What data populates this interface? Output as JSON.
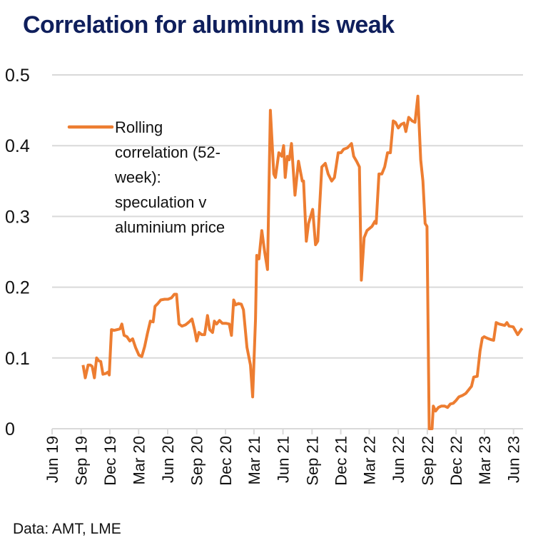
{
  "title": "Correlation for aluminum is weak",
  "source": "Data: AMT, LME",
  "colors": {
    "title": "#0f1f5c",
    "line": "#ed7d31",
    "grid": "#d9d9d9"
  },
  "chart_data": {
    "type": "line",
    "title": "Correlation for aluminum is weak",
    "xlabel": "",
    "ylabel": "",
    "ylim": [
      0,
      0.5
    ],
    "xlim": [
      "2019-06-01",
      "2023-07-01"
    ],
    "grid": true,
    "legend_placement": "top-left",
    "yticks": [
      "0",
      "0.1",
      "0.2",
      "0.3",
      "0.4",
      "0.5"
    ],
    "xticks": [
      {
        "date": "2019-06-01",
        "label": "Jun 19"
      },
      {
        "date": "2019-09-01",
        "label": "Sep 19"
      },
      {
        "date": "2019-12-01",
        "label": "Dec 19"
      },
      {
        "date": "2020-03-01",
        "label": "Mar 20"
      },
      {
        "date": "2020-06-01",
        "label": "Jun 20"
      },
      {
        "date": "2020-09-01",
        "label": "Sep 20"
      },
      {
        "date": "2020-12-01",
        "label": "Dec 20"
      },
      {
        "date": "2021-03-01",
        "label": "Mar 21"
      },
      {
        "date": "2021-06-01",
        "label": "Jun 21"
      },
      {
        "date": "2021-09-01",
        "label": "Sep 21"
      },
      {
        "date": "2021-12-01",
        "label": "Dec 21"
      },
      {
        "date": "2022-03-01",
        "label": "Mar 22"
      },
      {
        "date": "2022-06-01",
        "label": "Jun 22"
      },
      {
        "date": "2022-09-01",
        "label": "Sep 22"
      },
      {
        "date": "2022-12-01",
        "label": "Dec 22"
      },
      {
        "date": "2023-03-01",
        "label": "Mar 23"
      },
      {
        "date": "2023-06-01",
        "label": "Jun 23"
      }
    ],
    "series": [
      {
        "name": "Rolling correlation (52-week): speculation v aluminium price",
        "legend_lines": [
          "Rolling",
          "correlation (52-",
          "week):",
          "speculation v",
          "aluminium price"
        ],
        "points": [
          [
            "2019-09-07",
            0.09
          ],
          [
            "2019-09-14",
            0.072
          ],
          [
            "2019-09-23",
            0.09
          ],
          [
            "2019-09-30",
            0.09
          ],
          [
            "2019-10-06",
            0.088
          ],
          [
            "2019-10-13",
            0.072
          ],
          [
            "2019-10-20",
            0.1
          ],
          [
            "2019-10-27",
            0.096
          ],
          [
            "2019-11-02",
            0.095
          ],
          [
            "2019-11-09",
            0.077
          ],
          [
            "2019-11-18",
            0.078
          ],
          [
            "2019-11-25",
            0.08
          ],
          [
            "2019-11-29",
            0.076
          ],
          [
            "2019-12-06",
            0.14
          ],
          [
            "2019-12-15",
            0.139
          ],
          [
            "2019-12-24",
            0.14
          ],
          [
            "2020-01-02",
            0.141
          ],
          [
            "2020-01-08",
            0.148
          ],
          [
            "2020-01-15",
            0.132
          ],
          [
            "2020-01-24",
            0.13
          ],
          [
            "2020-02-02",
            0.124
          ],
          [
            "2020-02-11",
            0.127
          ],
          [
            "2020-02-20",
            0.115
          ],
          [
            "2020-03-02",
            0.104
          ],
          [
            "2020-03-11",
            0.102
          ],
          [
            "2020-03-20",
            0.116
          ],
          [
            "2020-03-29",
            0.135
          ],
          [
            "2020-04-07",
            0.152
          ],
          [
            "2020-04-16",
            0.151
          ],
          [
            "2020-04-22",
            0.173
          ],
          [
            "2020-05-01",
            0.177
          ],
          [
            "2020-05-10",
            0.182
          ],
          [
            "2020-05-22",
            0.183
          ],
          [
            "2020-06-02",
            0.183
          ],
          [
            "2020-06-13",
            0.185
          ],
          [
            "2020-06-22",
            0.19
          ],
          [
            "2020-06-29",
            0.19
          ],
          [
            "2020-07-07",
            0.148
          ],
          [
            "2020-07-16",
            0.145
          ],
          [
            "2020-07-28",
            0.147
          ],
          [
            "2020-08-08",
            0.151
          ],
          [
            "2020-08-17",
            0.155
          ],
          [
            "2020-08-26",
            0.138
          ],
          [
            "2020-09-01",
            0.124
          ],
          [
            "2020-09-08",
            0.136
          ],
          [
            "2020-09-17",
            0.133
          ],
          [
            "2020-09-26",
            0.133
          ],
          [
            "2020-10-05",
            0.16
          ],
          [
            "2020-10-12",
            0.14
          ],
          [
            "2020-10-21",
            0.136
          ],
          [
            "2020-10-27",
            0.152
          ],
          [
            "2020-11-03",
            0.148
          ],
          [
            "2020-11-12",
            0.153
          ],
          [
            "2020-11-21",
            0.149
          ],
          [
            "2020-12-02",
            0.149
          ],
          [
            "2020-12-13",
            0.148
          ],
          [
            "2020-12-20",
            0.132
          ],
          [
            "2020-12-27",
            0.182
          ],
          [
            "2021-01-02",
            0.175
          ],
          [
            "2021-01-11",
            0.177
          ],
          [
            "2021-01-20",
            0.176
          ],
          [
            "2021-01-27",
            0.168
          ],
          [
            "2021-02-07",
            0.115
          ],
          [
            "2021-02-18",
            0.09
          ],
          [
            "2021-02-25",
            0.045
          ],
          [
            "2021-03-06",
            0.155
          ],
          [
            "2021-03-10",
            0.245
          ],
          [
            "2021-03-17",
            0.24
          ],
          [
            "2021-03-26",
            0.28
          ],
          [
            "2021-04-04",
            0.25
          ],
          [
            "2021-04-13",
            0.225
          ],
          [
            "2021-04-22",
            0.45
          ],
          [
            "2021-05-03",
            0.36
          ],
          [
            "2021-05-08",
            0.355
          ],
          [
            "2021-05-19",
            0.39
          ],
          [
            "2021-05-28",
            0.385
          ],
          [
            "2021-06-03",
            0.4
          ],
          [
            "2021-06-08",
            0.355
          ],
          [
            "2021-06-15",
            0.385
          ],
          [
            "2021-06-21",
            0.38
          ],
          [
            "2021-06-28",
            0.403
          ],
          [
            "2021-07-09",
            0.33
          ],
          [
            "2021-07-20",
            0.378
          ],
          [
            "2021-08-01",
            0.35
          ],
          [
            "2021-08-05",
            0.35
          ],
          [
            "2021-08-14",
            0.265
          ],
          [
            "2021-08-21",
            0.29
          ],
          [
            "2021-09-03",
            0.31
          ],
          [
            "2021-09-12",
            0.26
          ],
          [
            "2021-09-19",
            0.265
          ],
          [
            "2021-10-02",
            0.37
          ],
          [
            "2021-10-13",
            0.375
          ],
          [
            "2021-10-22",
            0.36
          ],
          [
            "2021-11-02",
            0.35
          ],
          [
            "2021-11-11",
            0.355
          ],
          [
            "2021-11-23",
            0.39
          ],
          [
            "2021-12-02",
            0.39
          ],
          [
            "2021-12-10",
            0.395
          ],
          [
            "2021-12-22",
            0.397
          ],
          [
            "2022-01-04",
            0.403
          ],
          [
            "2022-01-11",
            0.385
          ],
          [
            "2022-01-20",
            0.378
          ],
          [
            "2022-01-29",
            0.37
          ],
          [
            "2022-02-04",
            0.21
          ],
          [
            "2022-02-13",
            0.27
          ],
          [
            "2022-02-22",
            0.28
          ],
          [
            "2022-03-10",
            0.286
          ],
          [
            "2022-03-19",
            0.293
          ],
          [
            "2022-03-23",
            0.29
          ],
          [
            "2022-04-01",
            0.36
          ],
          [
            "2022-04-10",
            0.36
          ],
          [
            "2022-04-19",
            0.37
          ],
          [
            "2022-04-28",
            0.39
          ],
          [
            "2022-05-07",
            0.39
          ],
          [
            "2022-05-16",
            0.435
          ],
          [
            "2022-05-23",
            0.433
          ],
          [
            "2022-06-01",
            0.425
          ],
          [
            "2022-06-10",
            0.43
          ],
          [
            "2022-06-19",
            0.432
          ],
          [
            "2022-06-25",
            0.42
          ],
          [
            "2022-07-04",
            0.44
          ],
          [
            "2022-07-15",
            0.435
          ],
          [
            "2022-07-24",
            0.433
          ],
          [
            "2022-08-02",
            0.47
          ],
          [
            "2022-08-11",
            0.38
          ],
          [
            "2022-08-18",
            0.35
          ],
          [
            "2022-08-25",
            0.29
          ],
          [
            "2022-08-31",
            0.286
          ],
          [
            "2022-09-07",
            0.0
          ],
          [
            "2022-09-16",
            0.0
          ],
          [
            "2022-09-20",
            0.032
          ],
          [
            "2022-09-27",
            0.025
          ],
          [
            "2022-10-06",
            0.03
          ],
          [
            "2022-10-15",
            0.032
          ],
          [
            "2022-10-26",
            0.032
          ],
          [
            "2022-11-04",
            0.03
          ],
          [
            "2022-11-13",
            0.035
          ],
          [
            "2022-11-22",
            0.036
          ],
          [
            "2022-12-01",
            0.04
          ],
          [
            "2022-12-10",
            0.045
          ],
          [
            "2022-12-21",
            0.047
          ],
          [
            "2023-01-01",
            0.05
          ],
          [
            "2023-01-10",
            0.055
          ],
          [
            "2023-01-19",
            0.06
          ],
          [
            "2023-01-26",
            0.073
          ],
          [
            "2023-02-06",
            0.074
          ],
          [
            "2023-02-15",
            0.11
          ],
          [
            "2023-02-22",
            0.128
          ],
          [
            "2023-02-28",
            0.13
          ],
          [
            "2023-03-09",
            0.128
          ],
          [
            "2023-03-21",
            0.126
          ],
          [
            "2023-03-30",
            0.125
          ],
          [
            "2023-04-07",
            0.15
          ],
          [
            "2023-04-16",
            0.148
          ],
          [
            "2023-04-25",
            0.147
          ],
          [
            "2023-05-04",
            0.146
          ],
          [
            "2023-05-11",
            0.15
          ],
          [
            "2023-05-18",
            0.145
          ],
          [
            "2023-05-31",
            0.144
          ],
          [
            "2023-06-14",
            0.133
          ],
          [
            "2023-06-28",
            0.142
          ]
        ]
      }
    ]
  }
}
